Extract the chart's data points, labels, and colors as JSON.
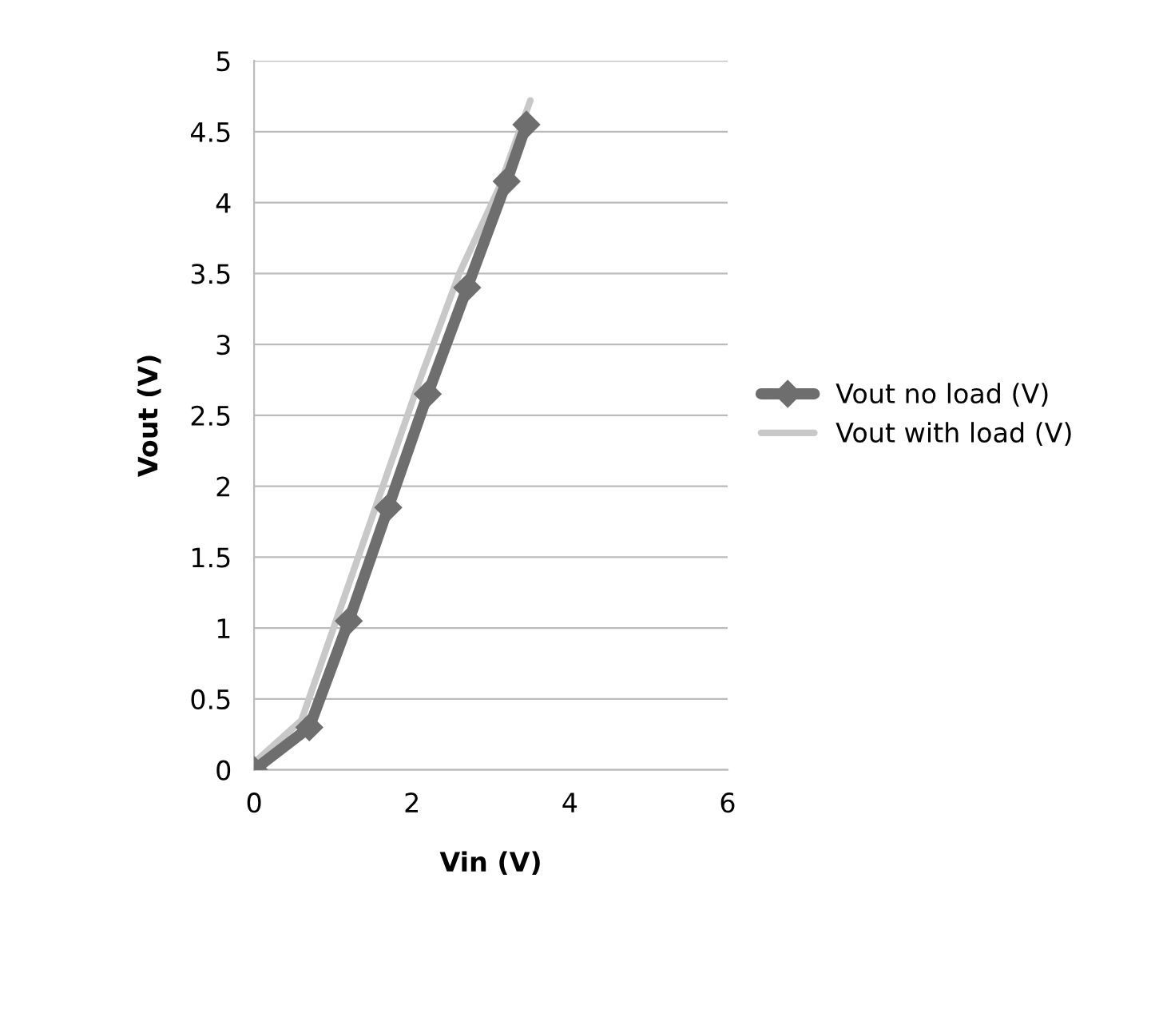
{
  "chart_data": {
    "type": "line",
    "xlabel": "Vin (V)",
    "ylabel": "Vout (V)",
    "series": [
      {
        "name": "Vout no load (V)",
        "color": "#6e6e6e",
        "x": [
          0,
          0.7,
          1.2,
          1.7,
          2.2,
          2.7,
          3.2,
          3.45
        ],
        "values": [
          0,
          0.3,
          1.05,
          1.85,
          2.65,
          3.4,
          4.15,
          4.55
        ],
        "marker": "diamond"
      },
      {
        "name": "Vout with load (V)",
        "color": "#c8c8c8",
        "x": [
          0,
          0.6,
          1.1,
          1.6,
          2.1,
          2.6,
          3.1,
          3.5
        ],
        "values": [
          0.05,
          0.35,
          1.15,
          1.95,
          2.75,
          3.5,
          4.1,
          4.72
        ],
        "marker": "none"
      }
    ],
    "xlim": [
      0,
      6
    ],
    "xticks": [
      0,
      2,
      4,
      6
    ],
    "ylim": [
      0,
      5
    ],
    "yticks": [
      0,
      0.5,
      1,
      1.5,
      2,
      2.5,
      3,
      3.5,
      4,
      4.5,
      5
    ],
    "grid": "y",
    "legend": "right"
  }
}
